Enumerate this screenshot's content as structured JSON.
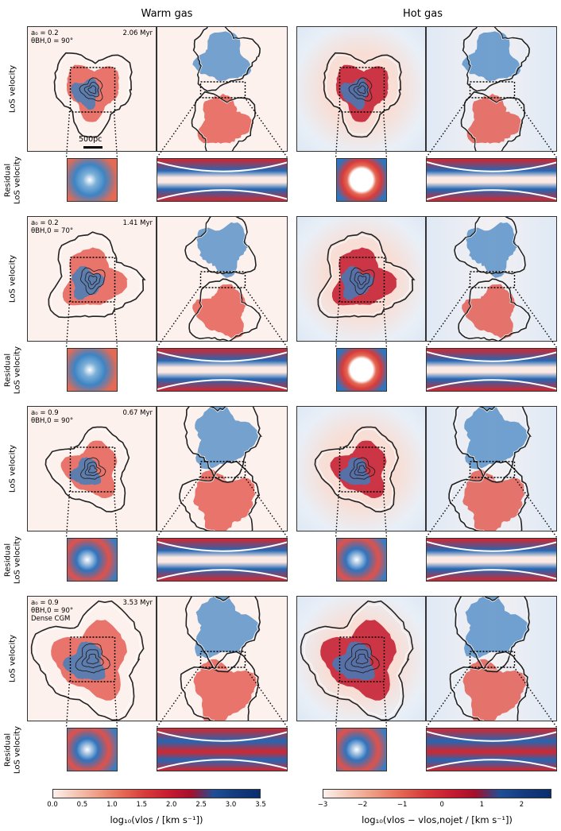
{
  "columns": {
    "warm_title": "Warm gas",
    "hot_title": "Hot gas"
  },
  "row_labels": {
    "los": "LoS velocity",
    "residual_line1": "Residual",
    "residual_line2": "LoS velocity"
  },
  "scale_bar_label": "500pc",
  "blocks": [
    {
      "a0": "a₀ = 0.2",
      "theta": "θBH,0 = 90°",
      "extra": "",
      "time": "2.06 Myr"
    },
    {
      "a0": "a₀ = 0.2",
      "theta": "θBH,0 = 70°",
      "extra": "",
      "time": "1.41 Myr"
    },
    {
      "a0": "a₀ = 0.9",
      "theta": "θBH,0 = 90°",
      "extra": "",
      "time": "0.67 Myr"
    },
    {
      "a0": "a₀ = 0.9",
      "theta": "θBH,0 = 90°",
      "extra": "Dense CGM",
      "time": "3.53 Myr"
    }
  ],
  "colorbars": {
    "warm": {
      "label": "log₁₀(vlos / [km s⁻¹])",
      "ticks": [
        "0.0",
        "0.5",
        "1.0",
        "1.5",
        "2.0",
        "2.5",
        "3.0",
        "3.5"
      ],
      "colors": [
        "#fdf0ec",
        "#0a2d6e"
      ]
    },
    "hot": {
      "label": "log₁₀(vlos − vlos,nojet / [km s⁻¹])",
      "ticks": [
        "−3",
        "−2",
        "−1",
        "0",
        "1",
        "2"
      ],
      "colors": [
        "#fdf0ec",
        "#0a2d6e"
      ]
    }
  },
  "palette": {
    "bg_warm": "#fdf1ed",
    "red": "#e04a3f",
    "blue": "#3a7fc1",
    "deep_red": "#c3162a",
    "deep_blue": "#1f5fa8",
    "hot_bg": "#e7eef7"
  }
}
